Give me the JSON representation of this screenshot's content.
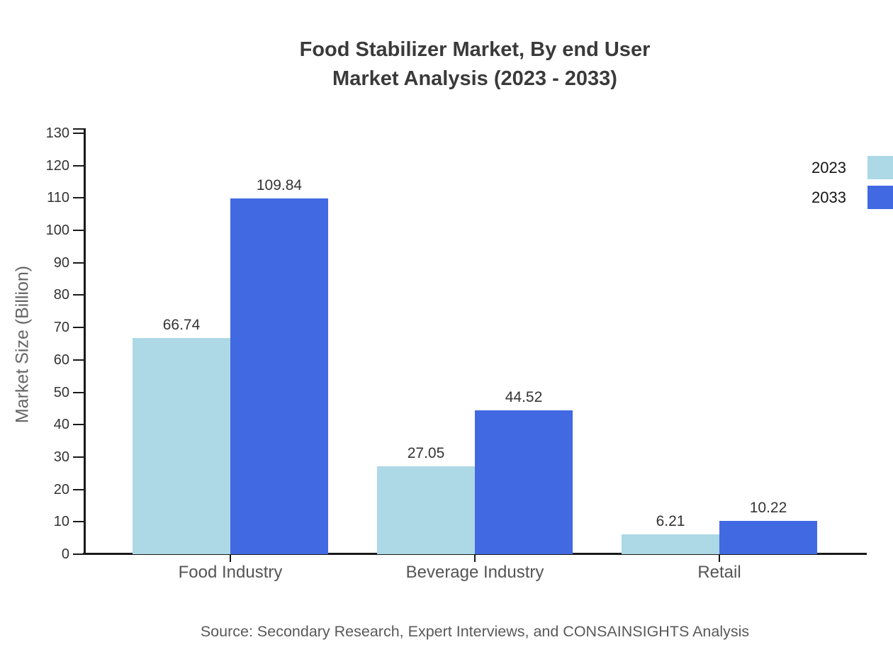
{
  "title": {
    "line1": "Food Stabilizer Market, By end User",
    "line2": "Market Analysis (2023 - 2033)"
  },
  "source_note": "Source: Secondary Research, Expert Interviews, and CONSAINSIGHTS Analysis",
  "chart_data": {
    "type": "bar",
    "title": "Food Stabilizer Market, By end User Market Analysis (2023 - 2033)",
    "categories": [
      "Food Industry",
      "Beverage Industry",
      "Retail"
    ],
    "series": [
      {
        "name": "2023",
        "color": "#ADD8E6",
        "values": [
          66.74,
          27.05,
          6.21
        ]
      },
      {
        "name": "2033",
        "color": "#4169E1",
        "values": [
          109.84,
          44.52,
          10.22
        ]
      }
    ],
    "xlabel": "",
    "ylabel": "Market Size (Billion)",
    "ylim": [
      0,
      130
    ],
    "ytick_step": 10,
    "grid": false,
    "legend_position": "top-right-edge",
    "value_labels": true,
    "colors": {
      "axis": "#1a1a1a",
      "tick_label": "#333333",
      "category_label": "#555555",
      "value_label": "#333333",
      "title": "#3a3a3a",
      "ylabel": "#666666",
      "source": "#595959",
      "legend_label": "#141414",
      "background": "#ffffff"
    }
  }
}
